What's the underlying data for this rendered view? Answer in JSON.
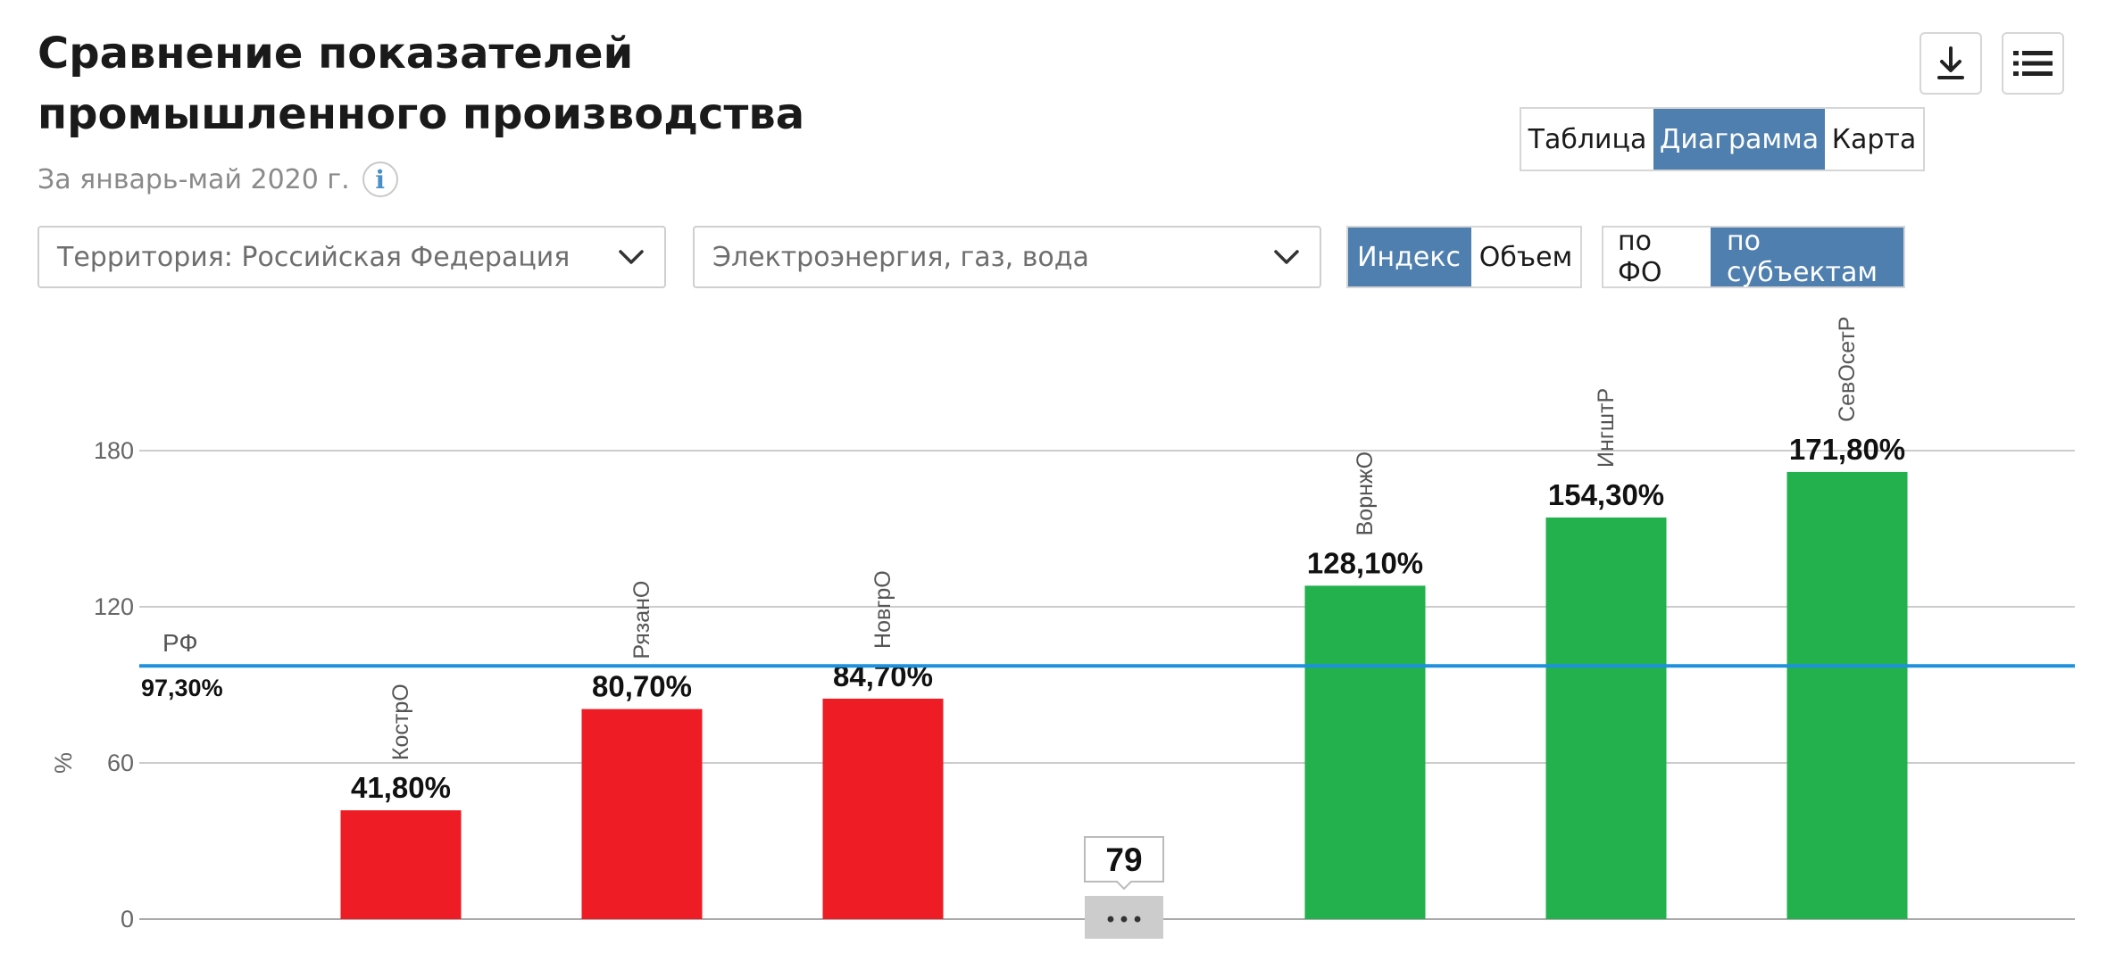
{
  "header": {
    "title": "Сравнение показателей промышленного производства",
    "subtitle": "За январь-май 2020 г.",
    "info_icon": "i"
  },
  "toolbar": {
    "download_icon": "download-icon",
    "menu_icon": "list-icon"
  },
  "view_tabs": [
    {
      "label": "Таблица",
      "active": false
    },
    {
      "label": "Диаграмма",
      "active": true
    },
    {
      "label": "Карта",
      "active": false
    }
  ],
  "filters": {
    "territory": "Территория: Российская  Федерация",
    "category": "Электроэнергия, газ, вода"
  },
  "measure_tabs": [
    {
      "label": "Индекс",
      "active": true
    },
    {
      "label": "Объем",
      "active": false
    }
  ],
  "group_tabs": [
    {
      "label": "по ФО",
      "active": false
    },
    {
      "label": "по субъектам",
      "active": true
    }
  ],
  "colors": {
    "accent": "#4f7faf",
    "bar_low": "#ee1c25",
    "bar_high": "#22b14c",
    "reference_line": "#1e90dc"
  },
  "chart_data": {
    "type": "bar",
    "ylabel": "%",
    "yticks": [
      0,
      60,
      120,
      180
    ],
    "ylim": [
      0,
      180
    ],
    "grid": true,
    "reference": {
      "label": "РФ",
      "value": 97.3,
      "value_label": "97,30%"
    },
    "bars": [
      {
        "category": "КострО",
        "value": 41.8,
        "label": "41,80%",
        "group": "low"
      },
      {
        "category": "РязанО",
        "value": 80.7,
        "label": "80,70%",
        "group": "low"
      },
      {
        "category": "НовгрО",
        "value": 84.7,
        "label": "84,70%",
        "group": "low"
      },
      {
        "category": "ВорнжО",
        "value": 128.1,
        "label": "128,10%",
        "group": "high"
      },
      {
        "category": "ИнгштР",
        "value": 154.3,
        "label": "154,30%",
        "group": "high"
      },
      {
        "category": "СевОсетР",
        "value": 171.8,
        "label": "171,80%",
        "group": "high"
      }
    ],
    "hidden": {
      "count_label": "79",
      "button_label": "• • •"
    }
  }
}
